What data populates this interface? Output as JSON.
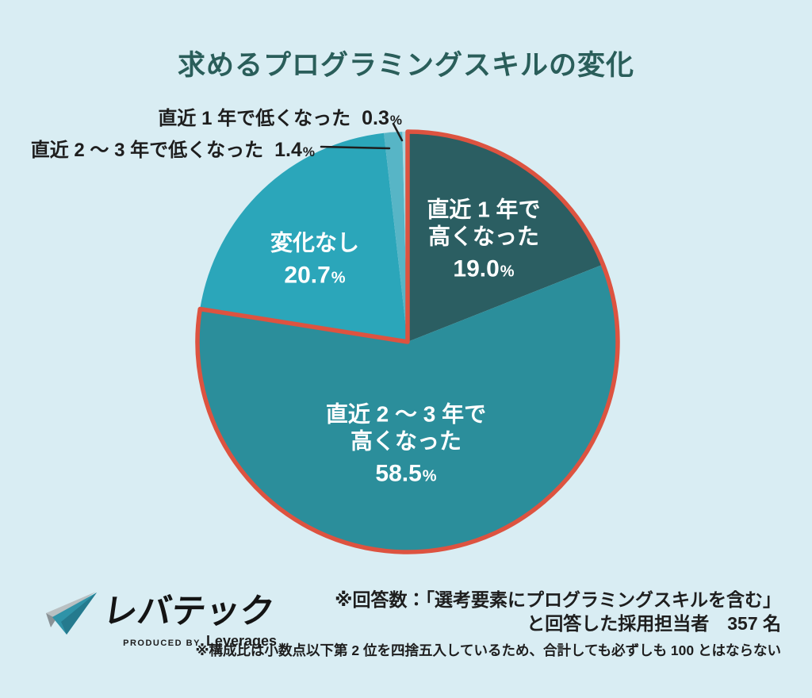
{
  "page": {
    "background_color": "#d9edf3",
    "title_color": "#2a5e5a",
    "text_color": "#1e1e1e"
  },
  "chart_data": {
    "type": "pie",
    "title": "求めるプログラミングスキルの変化",
    "unit": "%",
    "percent_sign": "%",
    "start_angle_deg": 0,
    "direction": "clockwise",
    "legend_position": "none",
    "slices": [
      {
        "name": "直近1年で高くなった",
        "display_lines": [
          "直近 1 年で",
          "高くなった"
        ],
        "value": 19.0,
        "value_text": "19.0",
        "color": "#2b5e62",
        "label_style": "inside",
        "text_color": "#ffffff"
      },
      {
        "name": "直近2～3年で高くなった",
        "display_lines": [
          "直近 2 ～ 3 年で",
          "高くなった"
        ],
        "value": 58.5,
        "value_text": "58.5",
        "color": "#2b8e9b",
        "label_style": "inside",
        "text_color": "#ffffff"
      },
      {
        "name": "変化なし",
        "display_lines": [
          "変化なし"
        ],
        "value": 20.7,
        "value_text": "20.7",
        "color": "#2ba6ba",
        "label_style": "inside",
        "text_color": "#ffffff"
      },
      {
        "name": "直近2～3年で低くなった",
        "display_lines": [
          "直近 2 ～ 3 年で低くなった"
        ],
        "value": 1.4,
        "value_text": "1.4",
        "color": "#57b5c6",
        "label_style": "callout",
        "text_color": "#1e1e1e"
      },
      {
        "name": "直近1年で低くなった",
        "display_lines": [
          "直近 1 年で低くなった"
        ],
        "value": 0.3,
        "value_text": "0.3",
        "color": "#a6d8e2",
        "label_style": "callout",
        "text_color": "#1e1e1e"
      }
    ],
    "highlight_outline": {
      "color": "#dd5340",
      "slices": [
        "直近1年で高くなった",
        "直近2～3年で高くなった"
      ],
      "covers_percent": 77.5
    }
  },
  "footer": {
    "logo_text": "レバテック",
    "produced_by": "PRODUCED BY",
    "company": "Leverages",
    "note_respondents_line1": "※回答数：「選考要素にプログラミングスキルを含む」",
    "note_respondents_line2": "と回答した採用担当者　357 名",
    "note_rounding": "※構成比は小数点以下第 2 位を四捨五入しているため、合計しても必ずしも 100 とはならない"
  }
}
